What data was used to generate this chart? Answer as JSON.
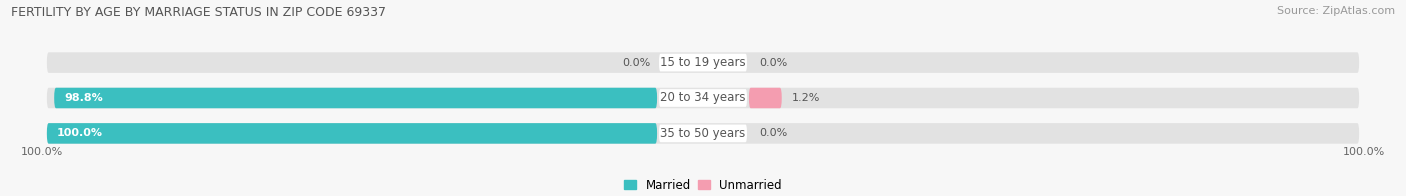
{
  "title": "FERTILITY BY AGE BY MARRIAGE STATUS IN ZIP CODE 69337",
  "source": "Source: ZipAtlas.com",
  "categories": [
    "15 to 19 years",
    "20 to 34 years",
    "35 to 50 years"
  ],
  "married_values": [
    0.0,
    98.8,
    100.0
  ],
  "unmarried_values": [
    0.0,
    1.2,
    0.0
  ],
  "married_color": "#3bbfc0",
  "unmarried_color": "#f49db0",
  "unmarried_color_row1": "#f4bcc8",
  "bar_bg_color": "#e2e2e2",
  "bg_color": "#f7f7f7",
  "title_color": "#555555",
  "source_color": "#999999",
  "label_left_married": [
    "0.0%",
    "98.8%",
    "100.0%"
  ],
  "label_right_unmarried": [
    "0.0%",
    "1.2%",
    "0.0%"
  ],
  "married_label": "Married",
  "unmarried_label": "Unmarried",
  "bottom_left_label": "100.0%",
  "bottom_right_label": "100.0%"
}
